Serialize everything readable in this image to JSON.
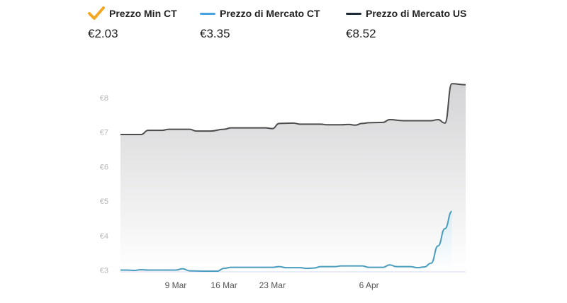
{
  "legend": [
    {
      "label": "Prezzo Min CT",
      "value": "€2.03",
      "icon": "check-icon",
      "color": "#f5a623"
    },
    {
      "label": "Prezzo di Mercato CT",
      "value": "€3.35",
      "icon": "line-swatch",
      "color": "#4aa3df"
    },
    {
      "label": "Prezzo di Mercato US",
      "value": "€8.52",
      "icon": "line-swatch",
      "color": "#1f2a38"
    }
  ],
  "chart_data": {
    "type": "line",
    "x_ticks": [
      "9 Mar",
      "16 Mar",
      "23 Mar",
      "6 Apr"
    ],
    "y_ticks": [
      "€3",
      "€4",
      "€5",
      "€6",
      "€7",
      "€8"
    ],
    "ylim": [
      2.97,
      8.98
    ],
    "xlim": [
      0,
      50
    ],
    "x_tick_positions": [
      8,
      15,
      22,
      36
    ],
    "series": [
      {
        "name": "Prezzo di Mercato US",
        "color": "#4d4d4d",
        "values": [
          [
            0,
            6.93
          ],
          [
            3,
            6.93
          ],
          [
            4,
            7.05
          ],
          [
            6,
            7.05
          ],
          [
            7,
            7.08
          ],
          [
            10,
            7.08
          ],
          [
            11,
            7.03
          ],
          [
            13,
            7.03
          ],
          [
            15,
            7.08
          ],
          [
            16,
            7.12
          ],
          [
            21,
            7.12
          ],
          [
            22,
            7.1
          ],
          [
            23,
            7.25
          ],
          [
            25,
            7.26
          ],
          [
            26,
            7.23
          ],
          [
            29,
            7.23
          ],
          [
            30,
            7.21
          ],
          [
            32,
            7.21
          ],
          [
            33,
            7.22
          ],
          [
            34,
            7.2
          ],
          [
            35,
            7.25
          ],
          [
            36,
            7.27
          ],
          [
            38,
            7.28
          ],
          [
            39,
            7.36
          ],
          [
            41,
            7.33
          ],
          [
            45,
            7.33
          ],
          [
            46,
            7.36
          ],
          [
            47,
            7.26
          ],
          [
            48,
            8.4
          ],
          [
            50,
            8.37
          ]
        ]
      },
      {
        "name": "Prezzo di Mercato CT",
        "color": "#4a9dbd",
        "values": [
          [
            0,
            3.0
          ],
          [
            1,
            3.0
          ],
          [
            2,
            2.99
          ],
          [
            3,
            3.01
          ],
          [
            4,
            3.0
          ],
          [
            8,
            3.0
          ],
          [
            9,
            3.04
          ],
          [
            10,
            2.98
          ],
          [
            12,
            2.97
          ],
          [
            14,
            2.97
          ],
          [
            15,
            3.05
          ],
          [
            16,
            3.08
          ],
          [
            22,
            3.08
          ],
          [
            23,
            3.1
          ],
          [
            24,
            3.07
          ],
          [
            26,
            3.07
          ],
          [
            27,
            3.05
          ],
          [
            28,
            3.06
          ],
          [
            29,
            3.1
          ],
          [
            31,
            3.1
          ],
          [
            32,
            3.12
          ],
          [
            35,
            3.12
          ],
          [
            36,
            3.08
          ],
          [
            38,
            3.08
          ],
          [
            39,
            3.15
          ],
          [
            40,
            3.1
          ],
          [
            42,
            3.1
          ],
          [
            43,
            3.07
          ],
          [
            44,
            3.09
          ],
          [
            45,
            3.2
          ],
          [
            46,
            3.7
          ],
          [
            47,
            4.2
          ],
          [
            48,
            4.7
          ]
        ]
      }
    ]
  }
}
